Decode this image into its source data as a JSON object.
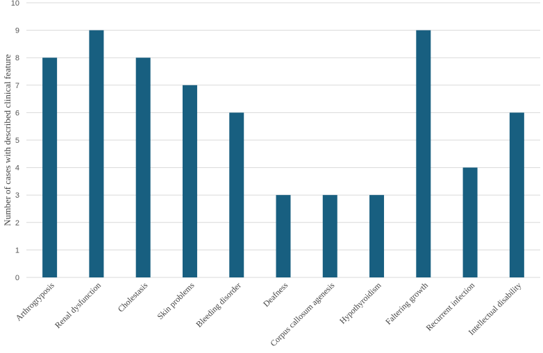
{
  "chart_data": {
    "type": "bar",
    "title": "",
    "xlabel": "",
    "ylabel": "Number of cases with described clinical feature",
    "categories": [
      "Arthrogryposis",
      "Renal dysfunction",
      "Cholestasis",
      "Skin problems",
      "Bleeding disorder",
      "Deafness",
      "Corpus callosum agenesis",
      "Hypothyroidism",
      "Faltering growth",
      "Recurrent infection",
      "Intellectual disability"
    ],
    "values": [
      8,
      9,
      8,
      7,
      6,
      3,
      3,
      3,
      9,
      4,
      6
    ],
    "ylim": [
      0,
      10
    ],
    "yticks": [
      0,
      1,
      2,
      3,
      4,
      5,
      6,
      7,
      8,
      9,
      10
    ],
    "grid": true,
    "legend": "none",
    "bar_color": "#185f80",
    "grid_color": "#d9d9d9"
  }
}
